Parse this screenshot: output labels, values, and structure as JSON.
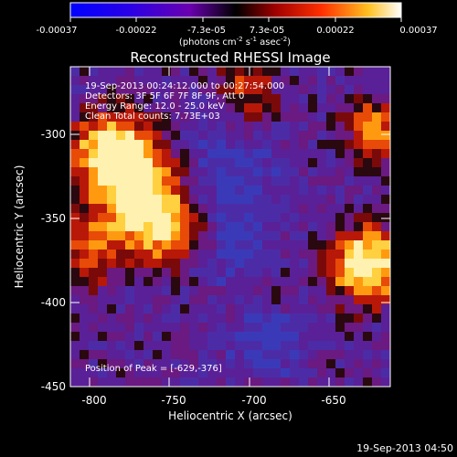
{
  "colorbar": {
    "tick_labels": [
      "-0.00037",
      "-0.00022",
      "-7.3e-05",
      "7.3e-05",
      "0.00022",
      "0.00037"
    ],
    "unit_main": "(photons cm",
    "unit_exp1": "-2",
    "unit_mid1": " s",
    "unit_exp2": "-1",
    "unit_mid2": " asec",
    "unit_exp3": "-2",
    "unit_close": ")"
  },
  "plot": {
    "title": "Reconstructed RHESSI Image",
    "xlabel": "Heliocentric X (arcsec)",
    "ylabel": "Heliocentric Y (arcsec)",
    "xticks": [
      "-800",
      "-750",
      "-700",
      "-650"
    ],
    "yticks": [
      "-300",
      "-350",
      "-400",
      "-450"
    ],
    "annotations": [
      "19-Sep-2013 00:24:12.000 to 00:27:54.000",
      "Detectors: 3F 5F 6F 7F 8F 9F, Att 0",
      "Energy Range: 12.0 - 25.0 keV",
      "Clean    Total counts: 7.73E+03"
    ],
    "peak_label": "Position of Peak = [-629,-376]"
  },
  "footer": {
    "timestamp": "19-Sep-2013 04:50"
  },
  "colors": {
    "background": "#000000",
    "text": "#ffffff"
  }
}
